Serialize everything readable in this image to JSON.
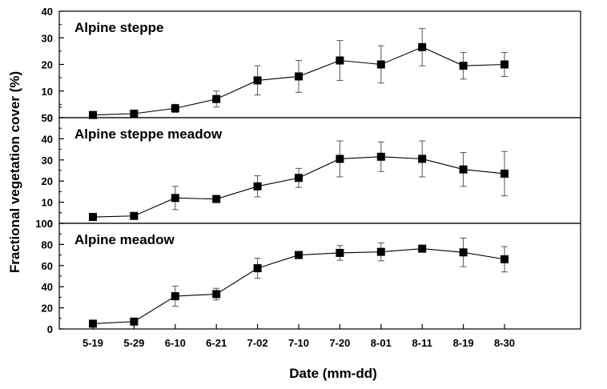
{
  "chart_data": {
    "type": "line",
    "xlabel": "Date (mm-dd)",
    "ylabel": "Fractional vegetation cover (%)",
    "categories": [
      "5-19",
      "5-29",
      "6-10",
      "6-21",
      "7-02",
      "7-10",
      "7-20",
      "8-01",
      "8-11",
      "8-19",
      "8-30"
    ],
    "marker": "square",
    "colors": {
      "line": "#000000",
      "marker": "#000000",
      "error_bar": "#555555"
    },
    "panels": [
      {
        "title": "Alpine steppe",
        "ylim": [
          0,
          40
        ],
        "yticks": [
          "0",
          "10",
          "20",
          "30",
          "40"
        ],
        "values": [
          1,
          1.5,
          3.5,
          7,
          14,
          15.5,
          21.5,
          20,
          26.5,
          19.5,
          20
        ],
        "errors": [
          0.8,
          0.8,
          1.5,
          3,
          5.5,
          6,
          7.5,
          7,
          7,
          5,
          4.5
        ]
      },
      {
        "title": "Alpine steppe meadow",
        "ylim": [
          0,
          50
        ],
        "yticks": [
          "0",
          "10",
          "20",
          "30",
          "40",
          "50"
        ],
        "values": [
          3,
          3.5,
          12,
          11.5,
          17.5,
          21.5,
          30.5,
          31.5,
          30.5,
          25.5,
          23.5
        ],
        "errors": [
          0.8,
          0.8,
          5.5,
          1.5,
          5,
          4.5,
          8.5,
          7,
          8.5,
          8,
          10.5
        ]
      },
      {
        "title": "Alpine meadow",
        "ylim": [
          0,
          100
        ],
        "yticks": [
          "0",
          "20",
          "40",
          "60",
          "80",
          "100"
        ],
        "values": [
          5,
          7,
          31,
          33,
          57.5,
          70,
          72,
          73,
          76,
          72.5,
          66
        ],
        "errors": [
          1,
          1,
          9.5,
          5.5,
          9.5,
          2,
          7,
          8.5,
          2.5,
          13.5,
          12
        ]
      }
    ]
  }
}
